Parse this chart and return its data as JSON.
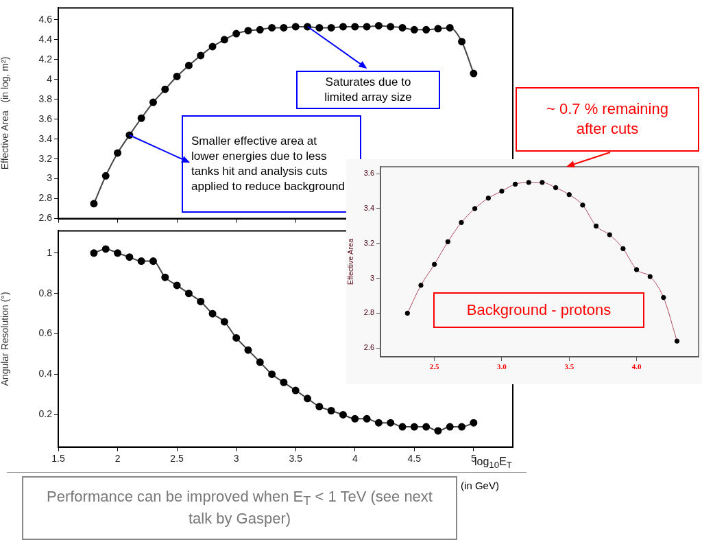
{
  "chart_data": [
    {
      "type": "line",
      "ylabel": "Effective Area   (in log, m²)",
      "x": [
        1.8,
        1.9,
        2.0,
        2.1,
        2.2,
        2.3,
        2.4,
        2.5,
        2.6,
        2.7,
        2.8,
        2.9,
        3.0,
        3.1,
        3.2,
        3.3,
        3.4,
        3.5,
        3.6,
        3.7,
        3.8,
        3.9,
        4.0,
        4.1,
        4.2,
        4.3,
        4.4,
        4.5,
        4.6,
        4.7,
        4.8,
        4.9,
        5.0
      ],
      "values": [
        2.75,
        3.03,
        3.26,
        3.44,
        3.61,
        3.77,
        3.9,
        4.03,
        4.14,
        4.24,
        4.33,
        4.4,
        4.46,
        4.49,
        4.5,
        4.52,
        4.52,
        4.53,
        4.53,
        4.52,
        4.52,
        4.53,
        4.53,
        4.53,
        4.54,
        4.53,
        4.52,
        4.5,
        4.5,
        4.51,
        4.52,
        4.38,
        4.06
      ],
      "color": "#000000",
      "marker": "circle",
      "line_style": "solid",
      "xlim": [
        1.5,
        5.33
      ],
      "xticks": [
        1.5,
        2,
        2.5,
        3,
        3.5,
        4,
        4.5,
        5
      ],
      "ylim": [
        2.6,
        4.72
      ],
      "yticks": [
        2.6,
        2.8,
        3,
        3.2,
        3.4,
        3.6,
        3.8,
        4,
        4.2,
        4.4,
        4.6
      ],
      "tick_labels": "y",
      "grid": false,
      "annotations": [
        {
          "text": "Saturates due to limited array size",
          "x": 3.6,
          "y": 4.53
        },
        {
          "text": "Smaller effective area at lower energies due to less tanks hit and analysis cuts applied to reduce background",
          "x": 2.1,
          "y": 3.44
        }
      ]
    },
    {
      "type": "line",
      "ylabel": "Angular Resolution (°)",
      "xlabel": "log$_{10}$E$_{T}$",
      "x": [
        1.8,
        1.9,
        2.0,
        2.1,
        2.2,
        2.3,
        2.4,
        2.5,
        2.6,
        2.7,
        2.8,
        2.9,
        3.0,
        3.1,
        3.2,
        3.3,
        3.4,
        3.5,
        3.6,
        3.7,
        3.8,
        3.9,
        4.0,
        4.1,
        4.2,
        4.3,
        4.4,
        4.5,
        4.6,
        4.7,
        4.8,
        4.9,
        5.0
      ],
      "values": [
        1.0,
        1.02,
        1.0,
        0.98,
        0.96,
        0.96,
        0.88,
        0.84,
        0.8,
        0.76,
        0.7,
        0.66,
        0.58,
        0.52,
        0.46,
        0.4,
        0.36,
        0.32,
        0.28,
        0.24,
        0.22,
        0.2,
        0.18,
        0.18,
        0.16,
        0.16,
        0.14,
        0.14,
        0.14,
        0.12,
        0.14,
        0.14,
        0.16
      ],
      "color": "#000000",
      "marker": "circle",
      "line_style": "solid",
      "xlim": [
        1.5,
        5.33
      ],
      "xticks": [
        1.5,
        2,
        2.5,
        3,
        3.5,
        4,
        4.5,
        5
      ],
      "ylim": [
        0.04,
        1.11
      ],
      "yticks": [
        0.2,
        0.4,
        0.6,
        0.8,
        1
      ],
      "grid": false,
      "annotations": [
        "(in GeV)",
        "Performance can be improved when E$_{T}$ < 1 TeV (see next talk by Gasper)"
      ]
    },
    {
      "type": "line",
      "ylabel": "Effective Area",
      "x": [
        2.3,
        2.4,
        2.5,
        2.6,
        2.7,
        2.8,
        2.9,
        3.0,
        3.1,
        3.2,
        3.3,
        3.4,
        3.5,
        3.6,
        3.7,
        3.8,
        3.9,
        4.0,
        4.1,
        4.2,
        4.3
      ],
      "values": [
        2.8,
        2.96,
        3.08,
        3.21,
        3.32,
        3.4,
        3.46,
        3.5,
        3.54,
        3.55,
        3.55,
        3.52,
        3.48,
        3.42,
        3.3,
        3.25,
        3.17,
        3.05,
        3.01,
        2.89,
        2.64
      ],
      "color": "#b04a60",
      "marker": "circle",
      "line_style": "solid",
      "xlim": [
        2.1,
        4.46
      ],
      "xticks": [
        {
          "value": 2.5,
          "label": "2.5"
        },
        {
          "value": 3,
          "label": "3.0"
        },
        {
          "value": 3.5,
          "label": "3.5"
        },
        {
          "value": 4,
          "label": "4.0"
        }
      ],
      "ylim": [
        2.55,
        3.64
      ],
      "yticks": [
        2.6,
        2.8,
        3,
        3.2,
        3.4,
        3.6
      ],
      "grid": false,
      "annotations": [
        "~ 0.7 % remaining after cuts",
        "Background - protons"
      ]
    }
  ]
}
